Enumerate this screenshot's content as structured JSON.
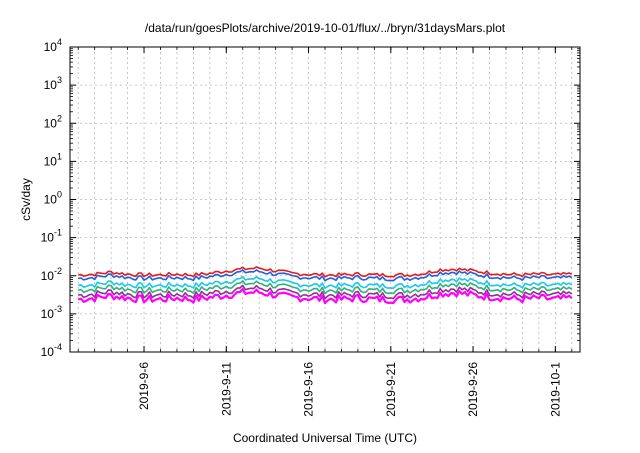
{
  "chart_data": {
    "type": "line",
    "title": "/data/run/goesPlots/archive/2019-10-01/flux/../bryn/31daysMars.plot",
    "xlabel": "Coordinated Universal Time (UTC)",
    "ylabel": "cSv/day",
    "y_scale": "log",
    "ylim": [
      0.0001,
      10000
    ],
    "xlim": [
      "2019-09-01T12:00",
      "2019-10-02T12:00"
    ],
    "grid": true,
    "y_ticks": [
      {
        "base": "10",
        "exp": "-4"
      },
      {
        "base": "10",
        "exp": "-3"
      },
      {
        "base": "10",
        "exp": "-2"
      },
      {
        "base": "10",
        "exp": "-1"
      },
      {
        "base": "10",
        "exp": "0"
      },
      {
        "base": "10",
        "exp": "1"
      },
      {
        "base": "10",
        "exp": "2"
      },
      {
        "base": "10",
        "exp": "3"
      },
      {
        "base": "10",
        "exp": "4"
      }
    ],
    "x_ticks": [
      {
        "date": "2019-09-06",
        "label": "2019-9-6"
      },
      {
        "date": "2019-09-11",
        "label": "2019-9-11"
      },
      {
        "date": "2019-09-16",
        "label": "2019-9-16"
      },
      {
        "date": "2019-09-21",
        "label": "2019-9-21"
      },
      {
        "date": "2019-09-26",
        "label": "2019-9-26"
      },
      {
        "date": "2019-10-01",
        "label": "2019-10-1"
      }
    ],
    "x": [
      "2019-09-02",
      "2019-09-03",
      "2019-09-04",
      "2019-09-05",
      "2019-09-06",
      "2019-09-07",
      "2019-09-08",
      "2019-09-09",
      "2019-09-10",
      "2019-09-11",
      "2019-09-12",
      "2019-09-13",
      "2019-09-14",
      "2019-09-15",
      "2019-09-16",
      "2019-09-17",
      "2019-09-18",
      "2019-09-19",
      "2019-09-20",
      "2019-09-21",
      "2019-09-22",
      "2019-09-23",
      "2019-09-24",
      "2019-09-25",
      "2019-09-26",
      "2019-09-27",
      "2019-09-28",
      "2019-09-29",
      "2019-09-30",
      "2019-10-01",
      "2019-10-02"
    ],
    "series": [
      {
        "color": "#e41a1c",
        "values": [
          0.0105,
          0.011,
          0.0125,
          0.011,
          0.0105,
          0.0105,
          0.011,
          0.0105,
          0.0115,
          0.0135,
          0.015,
          0.016,
          0.0135,
          0.0115,
          0.011,
          0.0105,
          0.0105,
          0.011,
          0.0105,
          0.0105,
          0.0105,
          0.0115,
          0.0145,
          0.015,
          0.0135,
          0.012,
          0.011,
          0.0105,
          0.011,
          0.0105,
          0.011
        ]
      },
      {
        "color": "#1f5fe0",
        "values": [
          0.0085,
          0.009,
          0.0105,
          0.009,
          0.0085,
          0.0085,
          0.009,
          0.0085,
          0.0095,
          0.011,
          0.0125,
          0.013,
          0.011,
          0.0095,
          0.009,
          0.0085,
          0.0085,
          0.009,
          0.0085,
          0.0085,
          0.0085,
          0.0095,
          0.012,
          0.0125,
          0.011,
          0.0098,
          0.009,
          0.0085,
          0.009,
          0.0085,
          0.009
        ]
      },
      {
        "color": "#17c9e6",
        "values": [
          0.0056,
          0.0058,
          0.0068,
          0.0058,
          0.0055,
          0.0055,
          0.0058,
          0.0055,
          0.0062,
          0.0072,
          0.0082,
          0.0085,
          0.0072,
          0.0062,
          0.0058,
          0.0055,
          0.0055,
          0.0058,
          0.0055,
          0.0055,
          0.0055,
          0.0062,
          0.0078,
          0.0082,
          0.0072,
          0.0064,
          0.0058,
          0.0055,
          0.0058,
          0.0055,
          0.0058
        ]
      },
      {
        "color": "#2db37a",
        "values": [
          0.0042,
          0.0044,
          0.0052,
          0.0044,
          0.0041,
          0.0041,
          0.0044,
          0.0041,
          0.0047,
          0.0054,
          0.0062,
          0.0064,
          0.0054,
          0.0047,
          0.0044,
          0.0041,
          0.0041,
          0.0044,
          0.0041,
          0.0041,
          0.0041,
          0.0047,
          0.0059,
          0.0062,
          0.0054,
          0.0048,
          0.0044,
          0.0041,
          0.0044,
          0.0041,
          0.0044
        ]
      },
      {
        "color": "#9a2a9a",
        "values": [
          0.0031,
          0.0033,
          0.0039,
          0.0033,
          0.0031,
          0.0031,
          0.0033,
          0.0031,
          0.0035,
          0.004,
          0.0046,
          0.0048,
          0.004,
          0.0035,
          0.0033,
          0.0031,
          0.0031,
          0.0033,
          0.0031,
          0.0031,
          0.0031,
          0.0035,
          0.0044,
          0.0046,
          0.004,
          0.0036,
          0.0033,
          0.0031,
          0.0033,
          0.0031,
          0.0033
        ]
      },
      {
        "color": "#ff00ff",
        "values": [
          0.0024,
          0.0026,
          0.003,
          0.0026,
          0.0024,
          0.0024,
          0.0026,
          0.0024,
          0.0027,
          0.0031,
          0.0036,
          0.0037,
          0.0031,
          0.0027,
          0.0026,
          0.0024,
          0.0024,
          0.0026,
          0.0024,
          0.0024,
          0.0024,
          0.0027,
          0.0034,
          0.0036,
          0.0031,
          0.0028,
          0.0026,
          0.0024,
          0.0026,
          0.0024,
          0.0026
        ]
      }
    ]
  }
}
